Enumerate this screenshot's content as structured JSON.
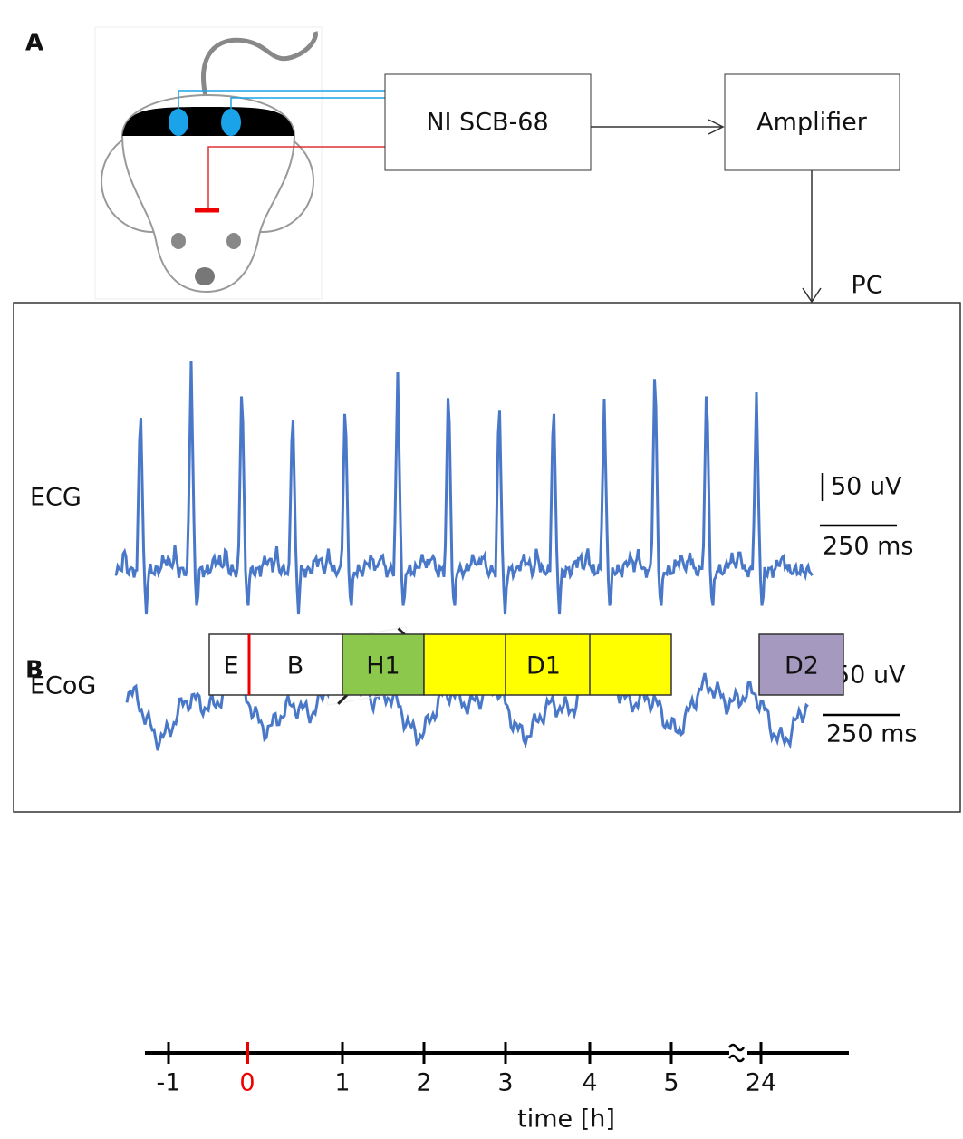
{
  "panel_a": {
    "label": "A",
    "boxes": [
      "NI SCB-68",
      "Amplifier"
    ],
    "pc_label": "PC",
    "traces": [
      {
        "name": "ECG",
        "scale_v": "50 uV",
        "scale_t": "250 ms"
      },
      {
        "name": "ECoG",
        "scale_v": "50 uV",
        "scale_t": "250 ms"
      }
    ]
  },
  "panel_b": {
    "label": "B",
    "segments": [
      "E",
      "B",
      "H1",
      "D1",
      "D2"
    ],
    "ticks": [
      "-1",
      "0",
      "1",
      "2",
      "3",
      "4",
      "5",
      "24"
    ],
    "axis_label": "time [h]"
  }
}
